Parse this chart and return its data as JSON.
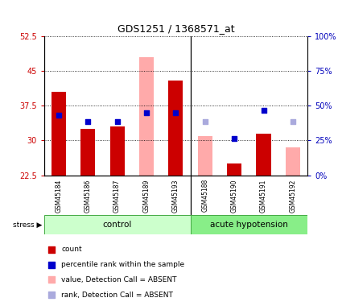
{
  "title": "GDS1251 / 1368571_at",
  "samples": [
    "GSM45184",
    "GSM45186",
    "GSM45187",
    "GSM45189",
    "GSM45193",
    "GSM45188",
    "GSM45190",
    "GSM45191",
    "GSM45192"
  ],
  "ylim_left": [
    22.5,
    52.5
  ],
  "ylim_right": [
    0,
    100
  ],
  "yticks_left": [
    22.5,
    30,
    37.5,
    45,
    52.5
  ],
  "yticks_right": [
    0,
    25,
    50,
    75,
    100
  ],
  "red_bar_values": [
    40.5,
    32.5,
    33.0,
    null,
    43.0,
    null,
    25.0,
    31.5,
    null
  ],
  "pink_bar_values": [
    null,
    null,
    null,
    48.0,
    null,
    31.0,
    null,
    null,
    28.5
  ],
  "blue_sq_values": [
    35.5,
    34.0,
    34.0,
    36.0,
    36.0,
    null,
    30.5,
    36.5,
    null
  ],
  "lav_sq_values": [
    null,
    null,
    null,
    null,
    null,
    34.0,
    null,
    null,
    34.0
  ],
  "red_color": "#cc0000",
  "pink_color": "#ffaaaa",
  "blue_color": "#0000cc",
  "lav_color": "#aaaadd",
  "control_count": 5,
  "ctrl_bg": "#ccffcc",
  "ah_bg": "#88ee88",
  "left_tick_color": "#cc0000",
  "right_tick_color": "#0000bb"
}
